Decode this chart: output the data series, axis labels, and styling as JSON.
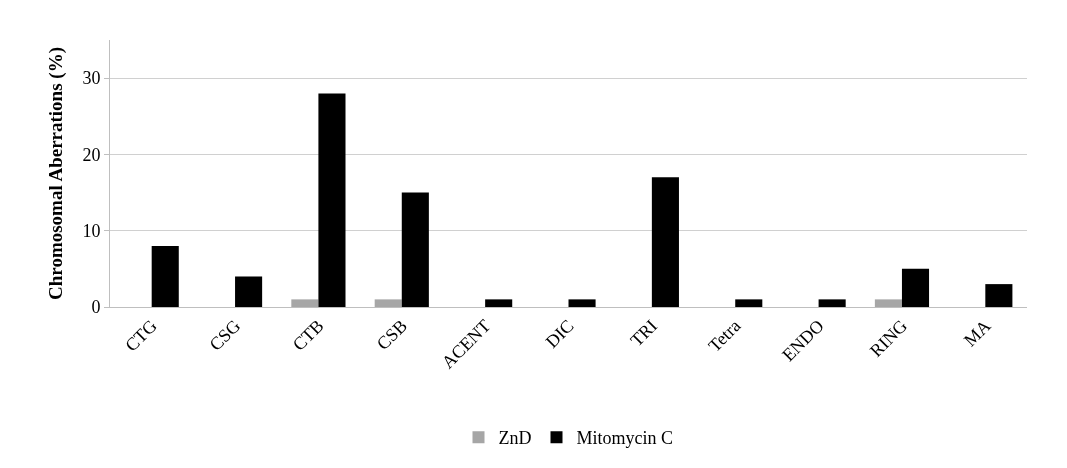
{
  "chart_data": {
    "type": "bar",
    "ylabel": "Chromosomal Aberrations (%)",
    "categories": [
      "CTG",
      "CSG",
      "CTB",
      "CSB",
      "ACENT",
      "DIC",
      "TRI",
      "Tetra",
      "ENDO",
      "RING",
      "MA"
    ],
    "series": [
      {
        "name": "ZnD",
        "color": "#a6a6a6",
        "values": [
          0,
          0,
          1,
          1,
          0,
          0,
          0,
          0,
          0,
          1,
          0
        ]
      },
      {
        "name": "Mitomycin C",
        "color": "#000000",
        "values": [
          8,
          4,
          28,
          15,
          1,
          1,
          17,
          1,
          1,
          5,
          3
        ]
      }
    ],
    "ylim": [
      0,
      35
    ],
    "yticks": [
      0,
      10,
      20,
      30
    ],
    "grid": "y",
    "legend": "bottom"
  }
}
